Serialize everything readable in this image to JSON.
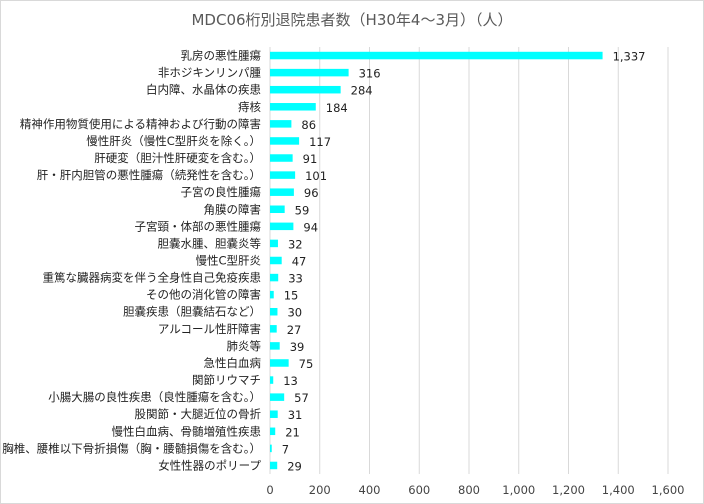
{
  "chart_data": {
    "type": "bar",
    "orientation": "horizontal",
    "title": "MDC06桁別退院患者数（H30年4～3月）（人）",
    "categories": [
      "乳房の悪性腫瘍",
      "非ホジキンリンパ腫",
      "白内障、水晶体の疾患",
      "痔核",
      "精神作用物質使用による精神および行動の障害",
      "慢性肝炎（慢性C型肝炎を除く。）",
      "肝硬変（胆汁性肝硬変を含む。）",
      "肝・肝内胆管の悪性腫瘍（続発性を含む。）",
      "子宮の良性腫瘍",
      "角膜の障害",
      "子宮頸・体部の悪性腫瘍",
      "胆嚢水腫、胆嚢炎等",
      "慢性C型肝炎",
      "重篤な臓器病変を伴う全身性自己免疫疾患",
      "その他の消化管の障害",
      "胆嚢疾患（胆嚢結石など）",
      "アルコール性肝障害",
      "肺炎等",
      "急性白血病",
      "関節リウマチ",
      "小腸大腸の良性疾患（良性腫瘍を含む。）",
      "股関節・大腿近位の骨折",
      "慢性白血病、骨髄増殖性疾患",
      "胸椎、腰椎以下骨折損傷（胸・腰髄損傷を含む。）",
      "女性性器のポリープ"
    ],
    "values": [
      1337,
      316,
      284,
      184,
      86,
      117,
      91,
      101,
      96,
      59,
      94,
      32,
      47,
      33,
      15,
      30,
      27,
      39,
      75,
      13,
      57,
      31,
      21,
      7,
      29
    ],
    "value_labels": [
      "1,337",
      "316",
      "284",
      "184",
      "86",
      "117",
      "91",
      "101",
      "96",
      "59",
      "94",
      "32",
      "47",
      "33",
      "15",
      "30",
      "27",
      "39",
      "75",
      "13",
      "57",
      "31",
      "21",
      "7",
      "29"
    ],
    "xlim": [
      0,
      1600
    ],
    "xticks": [
      "0",
      "200",
      "400",
      "600",
      "800",
      "1,000",
      "1,200",
      "1,400",
      "1,600"
    ],
    "xlabel": "",
    "ylabel": "",
    "bar_color": "#00FFFF",
    "grid_color": "#d9d9d9",
    "grid": true,
    "legend": "none"
  }
}
